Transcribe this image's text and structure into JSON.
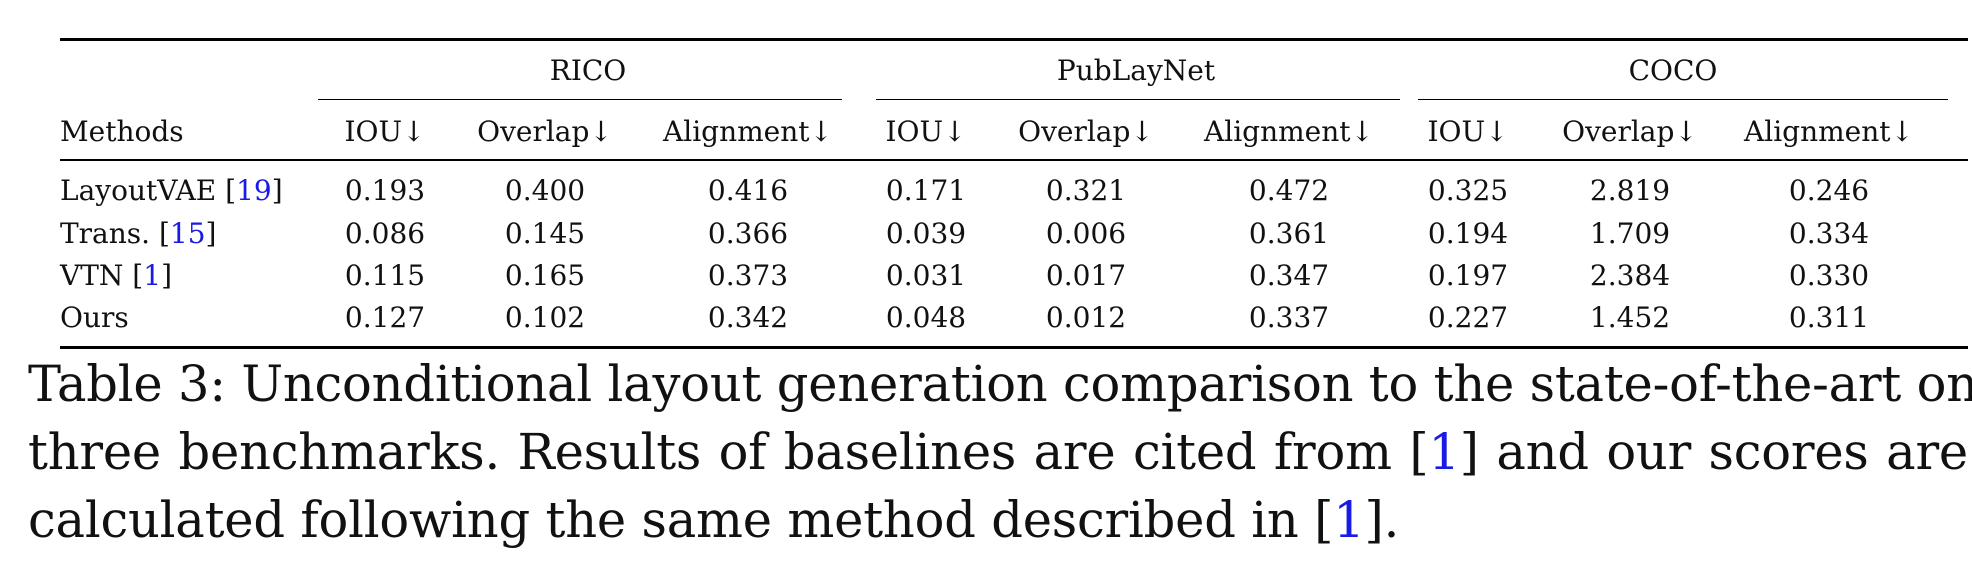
{
  "table": {
    "group_headers": [
      "RICO",
      "PubLayNet",
      "COCO"
    ],
    "method_header": "Methods",
    "metric_headers": [
      "IOU↓",
      "Overlap↓",
      "Alignment↓",
      "IOU↓",
      "Overlap↓",
      "Alignment↓",
      "IOU↓",
      "Overlap↓",
      "Alignment↓"
    ],
    "rows": [
      {
        "method": "LayoutVAE",
        "cite": "19",
        "values": [
          "0.193",
          "0.400",
          "0.416",
          "0.171",
          "0.321",
          "0.472",
          "0.325",
          "2.819",
          "0.246"
        ]
      },
      {
        "method": "Trans.",
        "cite": "15",
        "values": [
          "0.086",
          "0.145",
          "0.366",
          "0.039",
          "0.006",
          "0.361",
          "0.194",
          "1.709",
          "0.334"
        ]
      },
      {
        "method": "VTN",
        "cite": "1",
        "values": [
          "0.115",
          "0.165",
          "0.373",
          "0.031",
          "0.017",
          "0.347",
          "0.197",
          "2.384",
          "0.330"
        ]
      },
      {
        "method": "Ours",
        "cite": "",
        "values": [
          "0.127",
          "0.102",
          "0.342",
          "0.048",
          "0.012",
          "0.337",
          "0.227",
          "1.452",
          "0.311"
        ]
      }
    ]
  },
  "caption": {
    "line1": "Table 3: Unconditional layout generation comparison to the state-of-the-art on",
    "line2_pre": "three benchmarks. Results of baselines are cited from ",
    "line2_cite": "1",
    "line2_post": " and our scores are",
    "line3_pre": "calculated following the same method described in ",
    "line3_cite": "1",
    "line3_post": "."
  },
  "colors": {
    "text": "#111111",
    "citation": "#1a1ae6",
    "rule": "#000000"
  }
}
